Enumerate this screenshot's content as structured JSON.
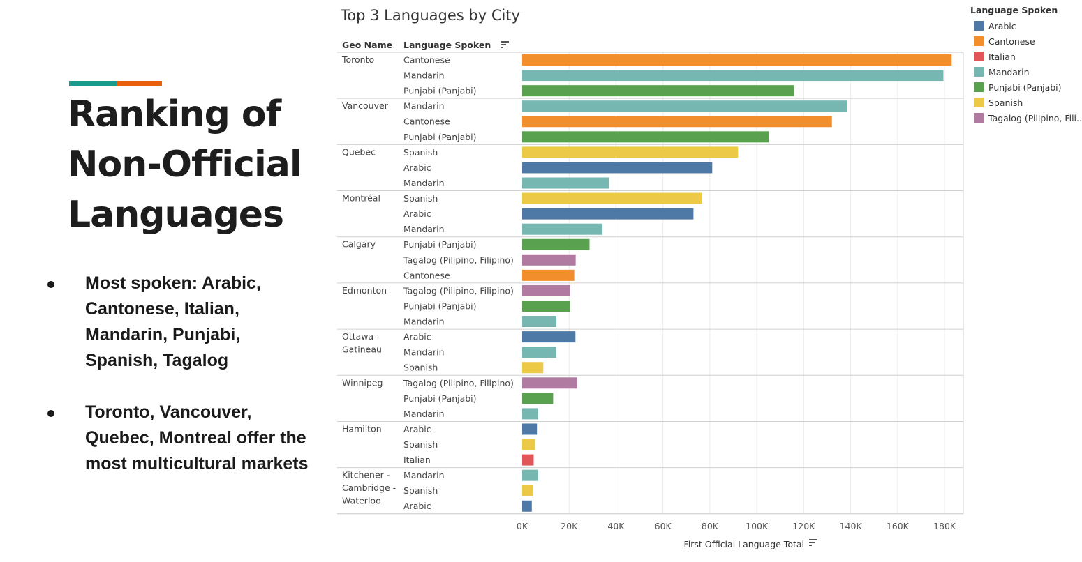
{
  "slide": {
    "title_lines": [
      "Ranking of",
      "Non-Official",
      "Languages"
    ],
    "bullets": [
      "Most spoken: Arabic, Cantonese, Italian, Mandarin, Punjabi, Spanish, Tagalog",
      "Toronto, Vancouver, Quebec, Montreal offer the most multicultural markets"
    ]
  },
  "colors": {
    "Arabic": "#4e79a7",
    "Cantonese": "#f28e2b",
    "Italian": "#e15759",
    "Mandarin": "#76b7b2",
    "Punjabi (Panjabi)": "#59a14f",
    "Spanish": "#edc948",
    "Tagalog (Pilipino, Filipino)": "#b07aa1"
  },
  "chart_data": {
    "type": "bar",
    "orientation": "horizontal",
    "title": "Top 3 Languages by City",
    "row_headers": [
      "Geo Name",
      "Language Spoken"
    ],
    "xlabel": "First Official Language Total",
    "xlim": [
      0,
      188000
    ],
    "x_ticks": [
      0,
      20000,
      40000,
      60000,
      80000,
      100000,
      120000,
      140000,
      160000,
      180000
    ],
    "x_tick_labels": [
      "0K",
      "20K",
      "40K",
      "60K",
      "80K",
      "100K",
      "120K",
      "140K",
      "160K",
      "180K"
    ],
    "grid": true,
    "legend_title": "Language Spoken",
    "legend_position": "top-right",
    "legend": [
      "Arabic",
      "Cantonese",
      "Italian",
      "Mandarin",
      "Punjabi (Panjabi)",
      "Spanish",
      "Tagalog (Pilipino, Fili.."
    ],
    "groups": [
      {
        "geo": [
          "Toronto"
        ],
        "rows": [
          {
            "language": "Cantonese",
            "value": 183000
          },
          {
            "language": "Mandarin",
            "value": 179500
          },
          {
            "language": "Punjabi (Panjabi)",
            "value": 116000
          }
        ]
      },
      {
        "geo": [
          "Vancouver"
        ],
        "rows": [
          {
            "language": "Mandarin",
            "value": 138500
          },
          {
            "language": "Cantonese",
            "value": 132000
          },
          {
            "language": "Punjabi (Panjabi)",
            "value": 105000
          }
        ]
      },
      {
        "geo": [
          "Quebec"
        ],
        "rows": [
          {
            "language": "Spanish",
            "value": 92000
          },
          {
            "language": "Arabic",
            "value": 81000
          },
          {
            "language": "Mandarin",
            "value": 37000
          }
        ]
      },
      {
        "geo": [
          "Montréal"
        ],
        "rows": [
          {
            "language": "Spanish",
            "value": 76700
          },
          {
            "language": "Arabic",
            "value": 73000
          },
          {
            "language": "Mandarin",
            "value": 34200
          }
        ]
      },
      {
        "geo": [
          "Calgary"
        ],
        "rows": [
          {
            "language": "Punjabi (Panjabi)",
            "value": 28700
          },
          {
            "language": "Tagalog (Pilipino, Filipino)",
            "value": 22800
          },
          {
            "language": "Cantonese",
            "value": 22200
          }
        ]
      },
      {
        "geo": [
          "Edmonton"
        ],
        "rows": [
          {
            "language": "Tagalog (Pilipino, Filipino)",
            "value": 20400
          },
          {
            "language": "Punjabi (Panjabi)",
            "value": 20400
          },
          {
            "language": "Mandarin",
            "value": 14600
          }
        ]
      },
      {
        "geo": [
          "Ottawa -",
          "Gatineau"
        ],
        "rows": [
          {
            "language": "Arabic",
            "value": 22700
          },
          {
            "language": "Mandarin",
            "value": 14500
          },
          {
            "language": "Spanish",
            "value": 9000
          }
        ]
      },
      {
        "geo": [
          "Winnipeg"
        ],
        "rows": [
          {
            "language": "Tagalog (Pilipino, Filipino)",
            "value": 23500
          },
          {
            "language": "Punjabi (Panjabi)",
            "value": 13200
          },
          {
            "language": "Mandarin",
            "value": 6800
          }
        ]
      },
      {
        "geo": [
          "Hamilton"
        ],
        "rows": [
          {
            "language": "Arabic",
            "value": 6300
          },
          {
            "language": "Spanish",
            "value": 5500
          },
          {
            "language": "Italian",
            "value": 4900
          }
        ]
      },
      {
        "geo": [
          "Kitchener -",
          "Cambridge -",
          "Waterloo"
        ],
        "rows": [
          {
            "language": "Mandarin",
            "value": 6800
          },
          {
            "language": "Spanish",
            "value": 4500
          },
          {
            "language": "Arabic",
            "value": 4100
          }
        ]
      }
    ]
  }
}
